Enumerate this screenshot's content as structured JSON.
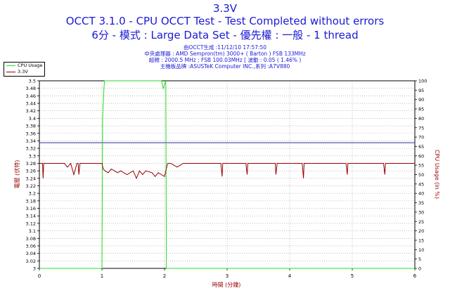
{
  "title": {
    "line1": "3.3V",
    "line2": "OCCT 3.1.0 - CPU OCCT Test - Test Completed without errors",
    "line3": "6分 - 模式 : Large Data Set - 優先權 : 一般 - 1 thread"
  },
  "subtitle": {
    "line1": "由OCCT生成 :11/12/10 17:57:50",
    "line2": "中央處理器 : AMD Sempron(tm) 3000+ ( Barton ) FSB 133MHz",
    "line3": "超頻 : 2000.5 MHz ; FSB 100.03MHz [ 波動 : 0.05 ( 1.46% )",
    "line4": "主機板品牌 :ASUSTeK Computer INC.,系列 :A7V880"
  },
  "legend": [
    {
      "label": "CPU Usage",
      "color": "#22dd22",
      "icon": "green-line"
    },
    {
      "label": "3.3V",
      "color": "#990000",
      "icon": "red-line"
    }
  ],
  "chart_data": {
    "type": "line",
    "xlabel": "時間 (分鐘)",
    "ylabel_left": "電壓 (伏特)",
    "ylabel_right": "CPU Usage (in %)",
    "xlim": [
      0,
      6
    ],
    "ylim_left": [
      3.0,
      3.5
    ],
    "ylim_right": [
      0,
      100
    ],
    "x_ticks": [
      "0",
      "1",
      "2",
      "3",
      "4",
      "5",
      "6"
    ],
    "y_left_ticks": [
      "3",
      "3.02",
      "3.04",
      "3.06",
      "3.08",
      "3.1",
      "3.12",
      "3.14",
      "3.16",
      "3.18",
      "3.2",
      "3.22",
      "3.24",
      "3.26",
      "3.28",
      "3.3",
      "3.32",
      "3.34",
      "3.36",
      "3.38",
      "3.4",
      "3.42",
      "3.44",
      "3.46",
      "3.48",
      "3.5"
    ],
    "y_right_ticks": [
      "0",
      "5",
      "10",
      "15",
      "20",
      "25",
      "30",
      "35",
      "40",
      "45",
      "50",
      "55",
      "60",
      "65",
      "70",
      "75",
      "80",
      "85",
      "90",
      "95",
      "100"
    ],
    "grid": true,
    "reference_line": {
      "value": 3.335,
      "axis": "left",
      "color": "#2a2aa0"
    },
    "series": [
      {
        "name": "CPU Usage",
        "axis": "right",
        "color": "#22dd22",
        "x": [
          0.0,
          0.99,
          1.0,
          1.01,
          1.03,
          1.04,
          1.06,
          1.1,
          1.3,
          1.5,
          1.7,
          1.95,
          1.98,
          2.0,
          2.02,
          2.03,
          2.04,
          6.0
        ],
        "y": [
          0,
          0,
          0,
          80,
          95,
          100,
          100,
          100,
          100,
          100,
          100,
          100,
          96,
          98,
          100,
          0,
          0,
          0
        ]
      },
      {
        "name": "3.3V",
        "axis": "left",
        "color": "#990000",
        "x": [
          0.0,
          0.05,
          0.06,
          0.07,
          0.1,
          0.4,
          0.45,
          0.5,
          0.55,
          0.6,
          0.62,
          0.63,
          0.65,
          0.7,
          1.0,
          1.02,
          1.05,
          1.1,
          1.15,
          1.2,
          1.25,
          1.3,
          1.4,
          1.5,
          1.55,
          1.6,
          1.65,
          1.7,
          1.8,
          1.85,
          1.9,
          1.95,
          2.0,
          2.02,
          2.05,
          2.1,
          2.2,
          2.3,
          2.5,
          2.7,
          2.9,
          2.92,
          2.93,
          2.95,
          3.0,
          3.3,
          3.32,
          3.33,
          3.35,
          3.5,
          3.77,
          3.78,
          3.8,
          4.0,
          4.2,
          4.22,
          4.23,
          4.25,
          4.4,
          4.6,
          4.8,
          4.9,
          4.92,
          4.93,
          4.95,
          5.2,
          5.4,
          5.5,
          5.52,
          5.53,
          5.55,
          5.7,
          5.9,
          6.0
        ],
        "y": [
          3.28,
          3.28,
          3.24,
          3.28,
          3.28,
          3.28,
          3.27,
          3.28,
          3.25,
          3.28,
          3.28,
          3.25,
          3.28,
          3.28,
          3.28,
          3.265,
          3.26,
          3.255,
          3.265,
          3.26,
          3.255,
          3.26,
          3.25,
          3.26,
          3.24,
          3.26,
          3.25,
          3.26,
          3.255,
          3.245,
          3.255,
          3.25,
          3.245,
          3.26,
          3.28,
          3.28,
          3.27,
          3.28,
          3.28,
          3.28,
          3.28,
          3.245,
          3.28,
          3.28,
          3.28,
          3.28,
          3.25,
          3.28,
          3.28,
          3.28,
          3.28,
          3.25,
          3.28,
          3.28,
          3.28,
          3.24,
          3.28,
          3.28,
          3.28,
          3.28,
          3.28,
          3.28,
          3.25,
          3.28,
          3.28,
          3.28,
          3.28,
          3.28,
          3.25,
          3.28,
          3.28,
          3.28,
          3.28,
          3.28
        ]
      }
    ]
  }
}
